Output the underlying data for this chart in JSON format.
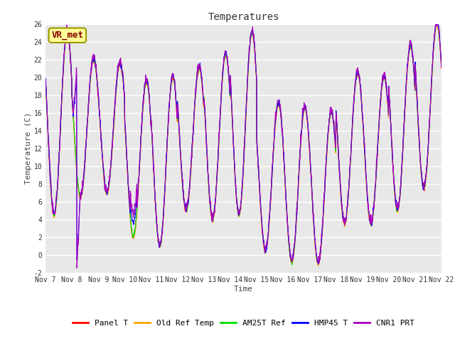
{
  "title": "Temperatures",
  "xlabel": "Time",
  "ylabel": "Temperature (C)",
  "ylim": [
    -2,
    26
  ],
  "series_colors": [
    "#ff0000",
    "#ffa500",
    "#00dd00",
    "#0000ff",
    "#aa00bb"
  ],
  "series_labels": [
    "Panel T",
    "Old Ref Temp",
    "AM25T Ref",
    "HMP45 T",
    "CNR1 PRT"
  ],
  "xtick_labels": [
    "Nov 7",
    "Nov 8",
    "Nov 9",
    "Nov 10",
    "Nov 11",
    "Nov 12",
    "Nov 13",
    "Nov 14",
    "Nov 15",
    "Nov 16",
    "Nov 17",
    "Nov 18",
    "Nov 19",
    "Nov 20",
    "Nov 21",
    "Nov 22"
  ],
  "yticks": [
    -2,
    0,
    2,
    4,
    6,
    8,
    10,
    12,
    14,
    16,
    18,
    20,
    22,
    24,
    26
  ],
  "annotation": "VR_met",
  "annotation_facecolor": "#ffff99",
  "annotation_edgecolor": "#999900",
  "annotation_textcolor": "#880000",
  "fig_facecolor": "#ffffff",
  "ax_facecolor": "#e8e8e8",
  "title_fontsize": 10,
  "axis_label_fontsize": 8,
  "tick_fontsize": 7,
  "legend_fontsize": 8,
  "line_width": 0.8,
  "day_peaks": [
    25.0,
    22.0,
    21.5,
    19.5,
    20.0,
    21.0,
    22.5,
    25.0,
    17.0,
    16.5,
    16.0,
    20.5,
    20.0,
    23.5,
    26.0
  ],
  "day_troughs": [
    4.5,
    6.5,
    7.0,
    2.0,
    1.0,
    5.0,
    4.0,
    4.5,
    0.5,
    -0.8,
    -1.0,
    3.5,
    3.5,
    5.0,
    7.5
  ]
}
